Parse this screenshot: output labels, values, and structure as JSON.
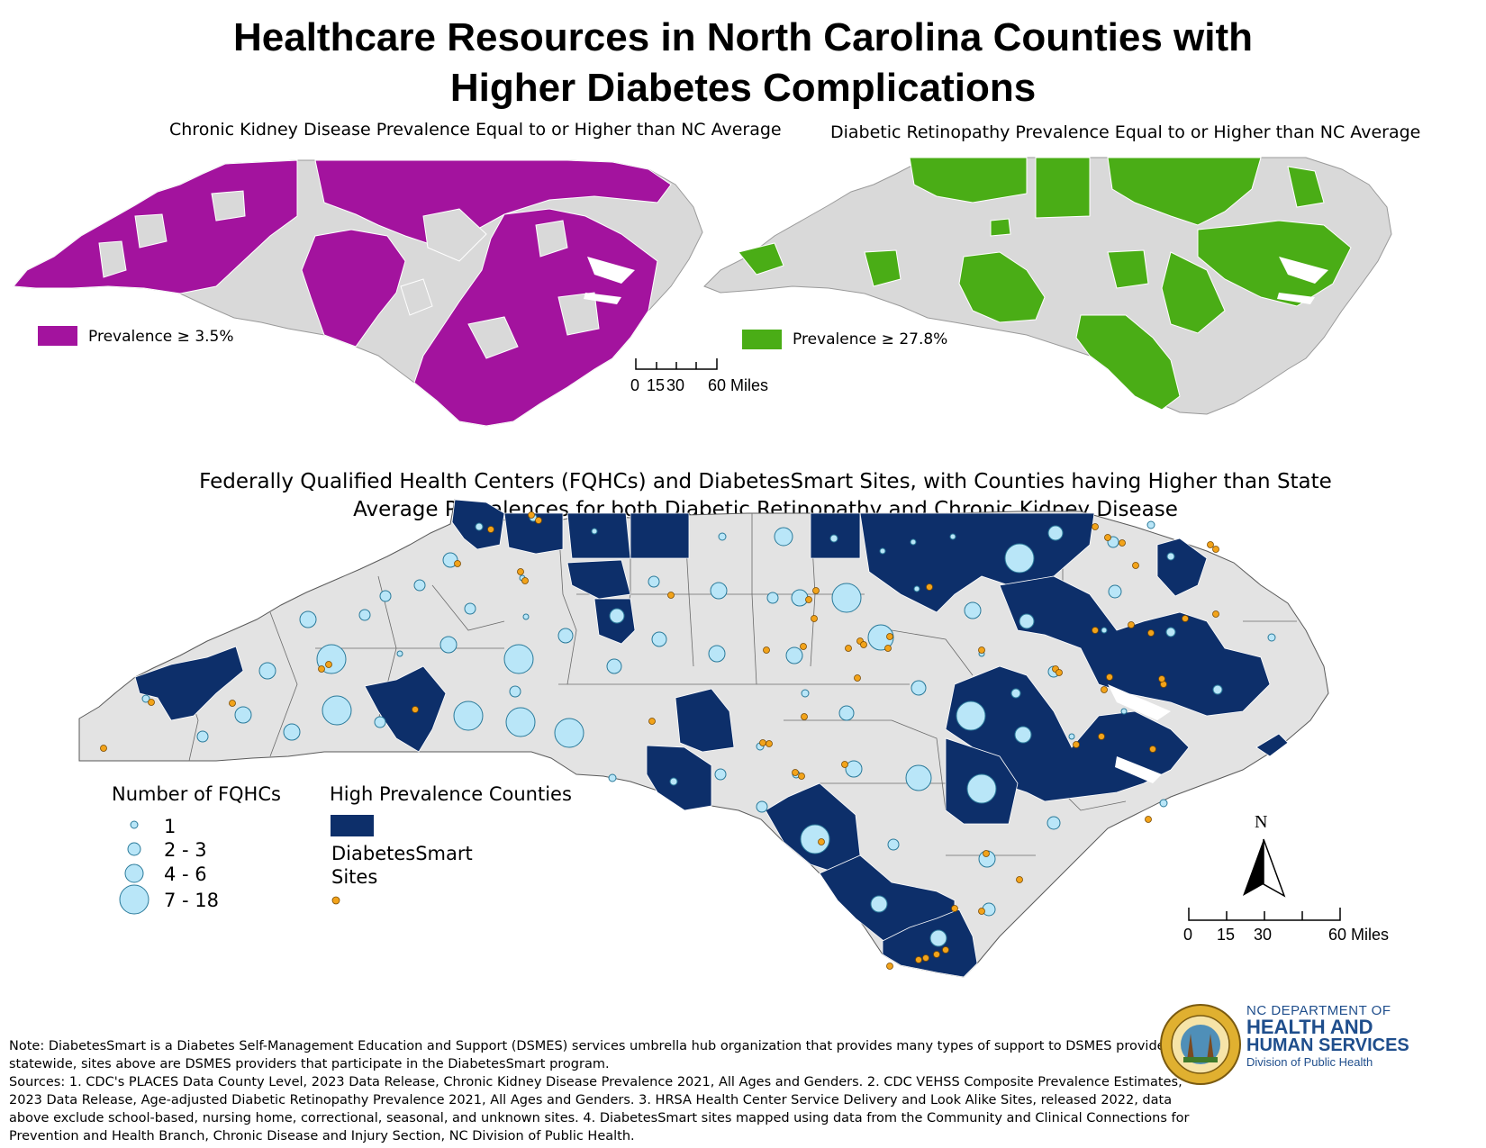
{
  "title_line1": "Healthcare Resources in North Carolina Counties with",
  "title_line2": "Higher Diabetes Complications",
  "ckd_map": {
    "caption": "Chronic Kidney Disease Prevalence Equal to or Higher than NC Average",
    "legend_label": "Prevalence ≥ 3.5%",
    "color": "#a3139e"
  },
  "retinopathy_map": {
    "caption": "Diabetic Retinopathy Prevalence Equal to or Higher than NC Average",
    "legend_label": "Prevalence ≥ 27.8%",
    "color": "#4aad16"
  },
  "small_scale_bar": {
    "labels": [
      "0",
      "15",
      "30",
      "60 Miles"
    ]
  },
  "fqhc_map": {
    "caption_line1": "Federally Qualified Health Centers (FQHCs) and DiabetesSmart Sites, with Counties having Higher than State",
    "caption_line2": "Average Prevalences for both Diabetic Retinopathy and Chronic Kidney Disease",
    "high_color": "#0d2f6a",
    "base_color": "#e3e3e3",
    "fqhc_color": "#b9e6f8",
    "site_color": "#f2a31a",
    "fqhc_legend_title": "Number of FQHCs",
    "fqhc_legend_items": [
      "1",
      "2 - 3",
      "4 - 6",
      "7 - 18"
    ],
    "high_legend_title": "High Prevalence Counties",
    "sites_legend_line1": "DiabetesSmart",
    "sites_legend_line2": "Sites"
  },
  "north_arrow": "N",
  "large_scale_bar": {
    "labels": [
      "0",
      "15",
      "30",
      "60 Miles"
    ]
  },
  "note": {
    "line1": "Note: DiabetesSmart is a Diabetes Self-Management Education and Support (DSMES) services umbrella hub organization that provides many types of support to DSMES providers",
    "line2": "statewide, sites above are DSMES providers that participate in the DiabetesSmart program.",
    "line3": "Sources: 1. CDC's PLACES Data County Level, 2023 Data Release, Chronic Kidney Disease Prevalence 2021, All Ages and Genders. 2. CDC VEHSS Composite Prevalence Estimates,",
    "line4": "2023 Data Release, Age-adjusted Diabetic Retinopathy Prevalence 2021, All Ages and Genders. 3. HRSA Health Center Service Delivery and Look Alike Sites, released 2022, data",
    "line5": "above exclude school-based, nursing home, correctional, seasonal, and unknown sites. 4. DiabetesSmart sites mapped using data from the Community and Clinical Connections for",
    "line6": "Prevention and Health Branch, Chronic Disease and Injury Section, NC Division of Public Health."
  },
  "dhhs": {
    "line1": "NC DEPARTMENT OF",
    "line2": "HEALTH AND",
    "line3": "HUMAN SERVICES",
    "line4": "Division of Public Health"
  }
}
